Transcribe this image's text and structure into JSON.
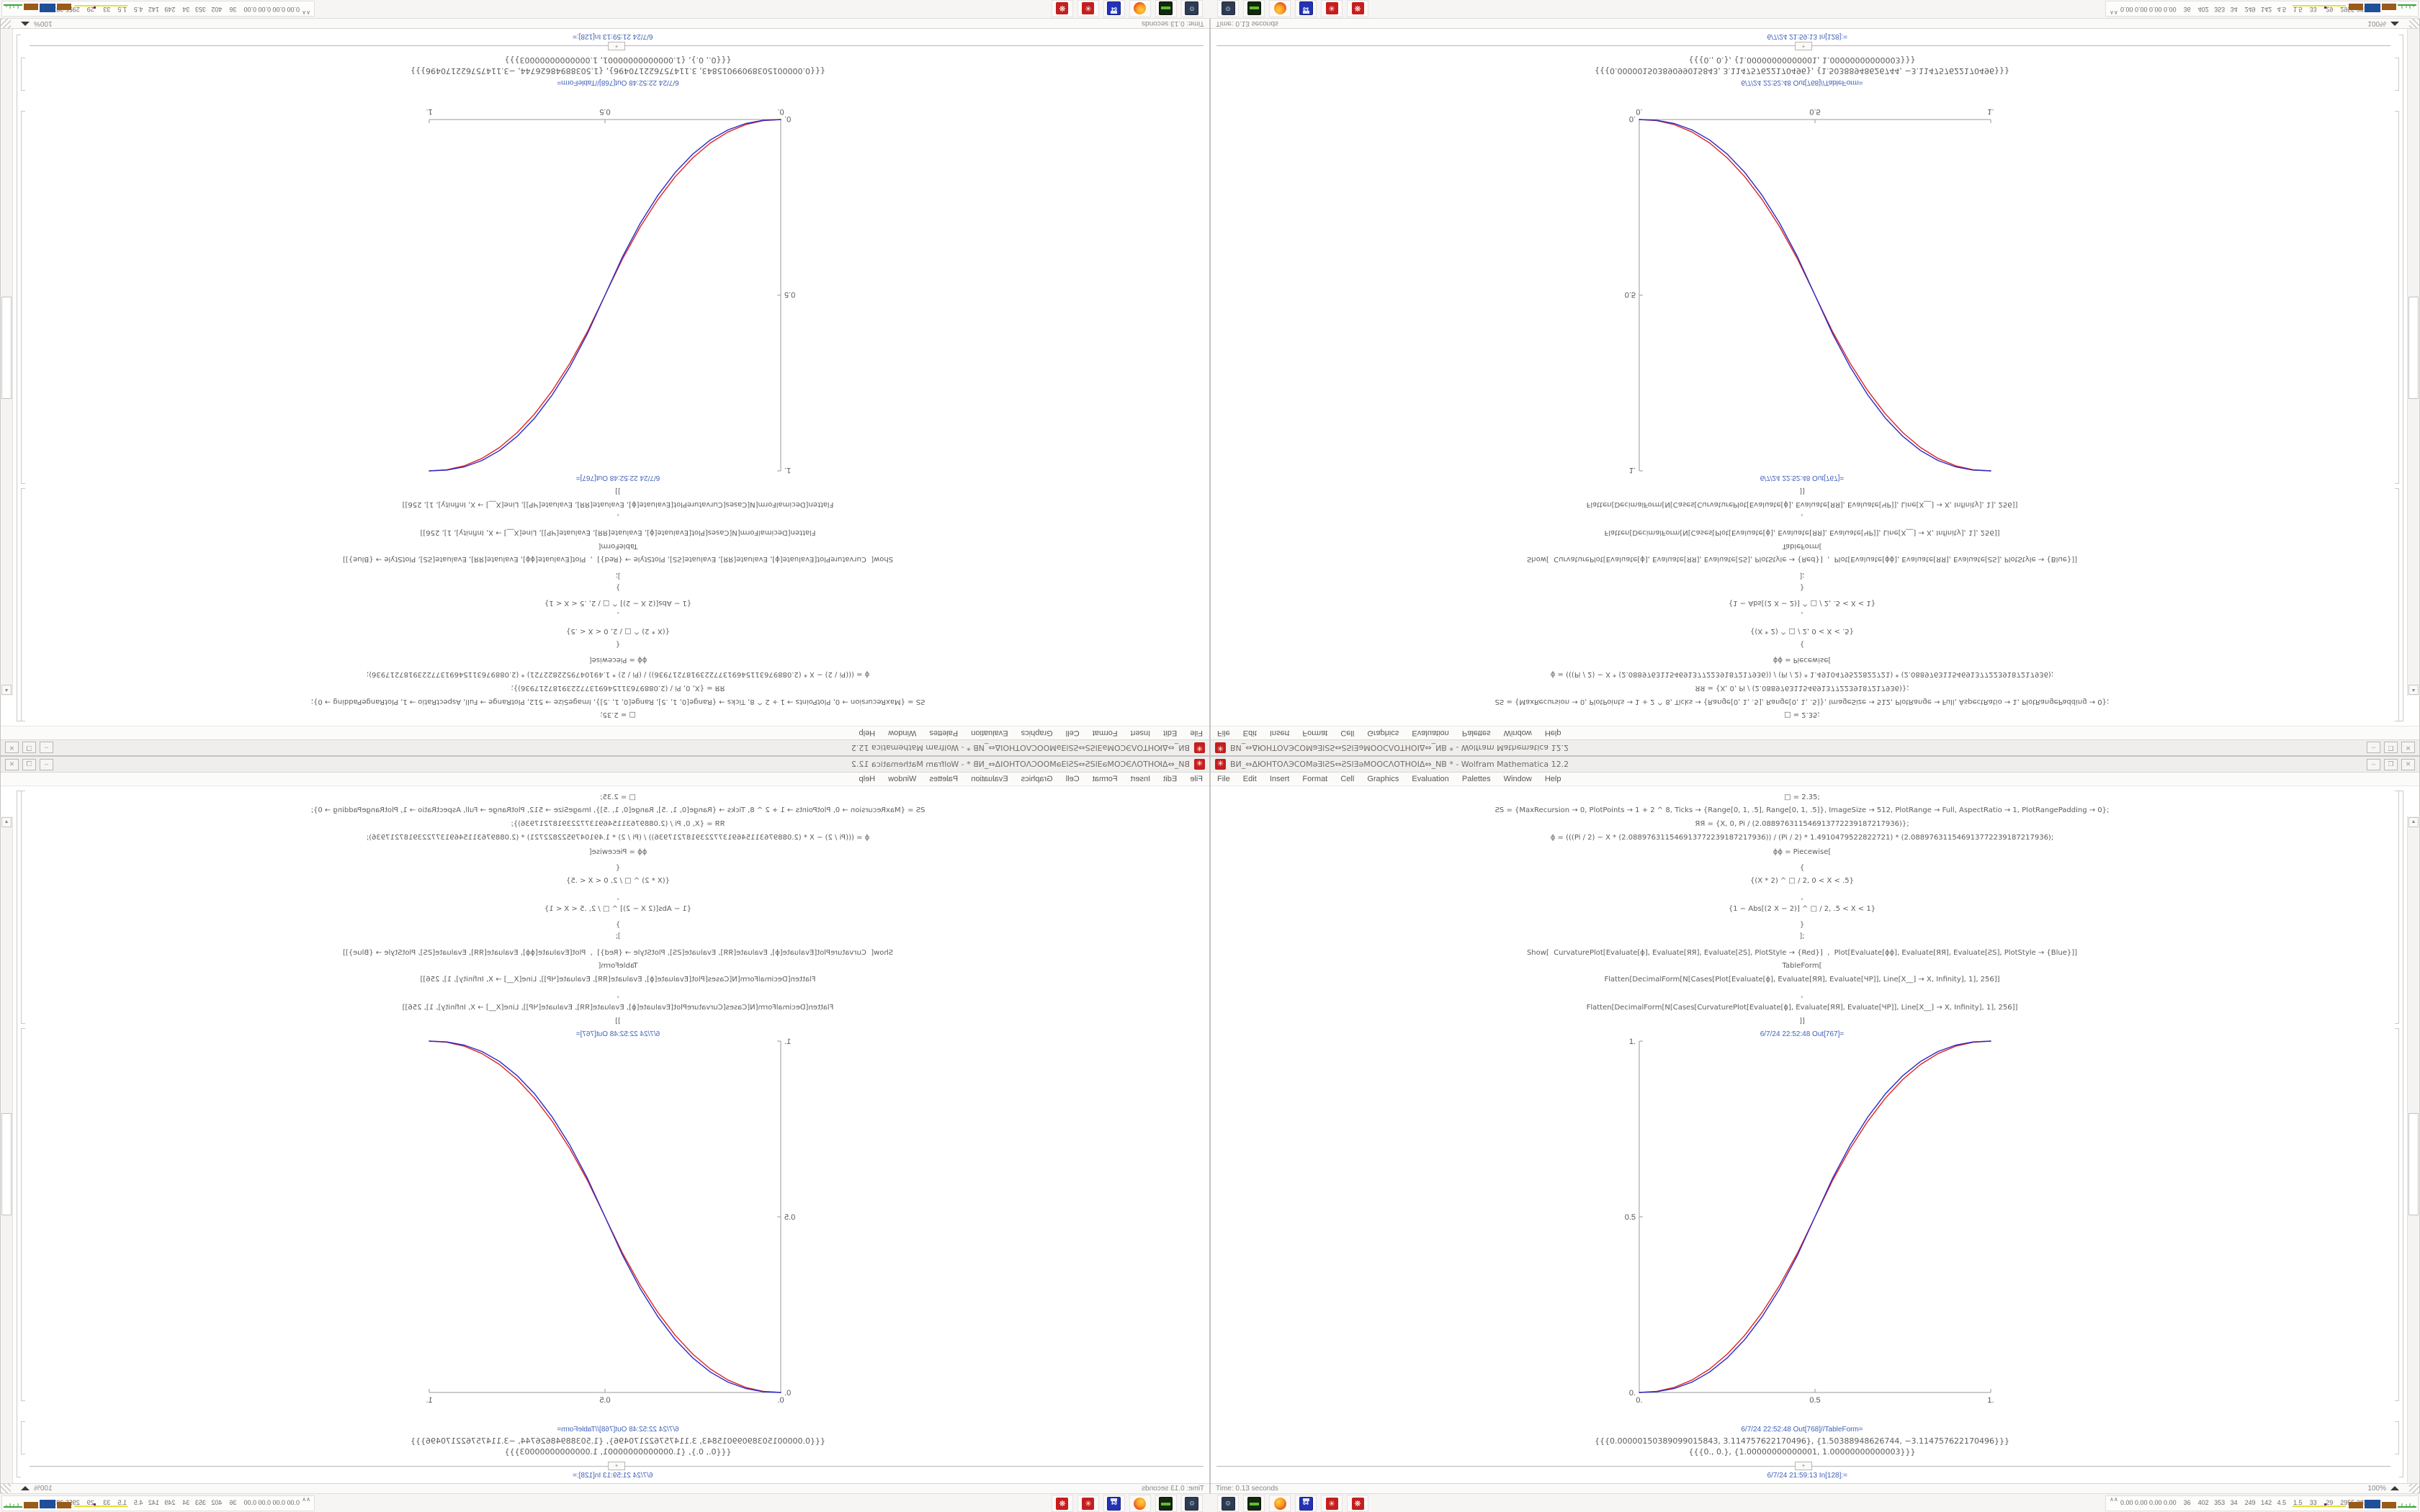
{
  "screen": {
    "titlebar": {
      "app_icon": "mathematica-spike-icon",
      "title": "ВИ_⇔ΔЮНТОΛЭСОМǝƎlƧS⇔ƧSlƎǝМООСΛОТНОІΔ⇔_NB * - Wolfram Mathematica 12.2",
      "minimize": "–",
      "maximize": "❒",
      "close": "✕"
    },
    "menu": [
      "File",
      "Edit",
      "Insert",
      "Format",
      "Cell",
      "Graphics",
      "Evaluation",
      "Palettes",
      "Window",
      "Help"
    ],
    "notebook": {
      "lines": [
        "□ = 2.35;",
        "ƧЅ = {MaxRecursion → 0, PlotPoints → 1 + 2 ^ 8, Ticks → {Range[0, 1, .5], Range[0, 1, .5]}, ImageSize → 512, PlotRange → Full, AspectRatio → 1, PlotRangePadding → 0};",
        "ЯЯ = {X, 0, Pi / (2.088976311546913772239187217936)};",
        "ɸ = (((Pi / 2) − X * (2.088976311546913772239187217936)) / (Pi / 2) * 1.4910479522822721) * (2.088976311546913772239187217936);",
        "ɸɸ = Piecewise[",
        "{",
        "{(X * 2) ^ □ / 2, 0 < X < .5}",
        ",",
        "{1 − Abs[(2 X − 2)] ^ □ / 2, .5 < X < 1}",
        "}",
        "];",
        "Show[  CurvaturePlot[Evaluate[ɸ], Evaluate[ЯЯ], Evaluate[ƧЅ], PlotStyle → {Red}]  ,  Plot[Evaluate[ɸɸ], Evaluate[ЯЯ], Evaluate[ƧЅ], PlotStyle → {Blue}]]",
        "TableForm[",
        "Flatten[DecimalForm[N[Cases[Plot[Evaluate[ɸ], Evaluate[ЯЯ], Evaluate[ЧР]], Line[X__] → X, Infinity], 1], 256]]",
        ",",
        "Flatten[DecimalForm[N[Cases[CurvaturePlot[Evaluate[ɸ], Evaluate[ЯЯ], Evaluate[ЧР]], Line[X__] → X, Infinity], 1], 256]]",
        "]]"
      ],
      "out1_label": "6/7/24 22:52:48 Out[767]=",
      "out2_label": "6/7/24 22:52:48 Out[768]//TableForm=",
      "table_rows": [
        "{{{0.00000150389099015843, 3.114757622170496}, {1.50388948626744, −3.114757622170496}}}",
        "{{{0., 0.}, {1.00000000000001, 1.00000000000003}}}"
      ],
      "insert_plus": "+",
      "next_in_label": "6/7/24 21:59:13 In[128]:="
    },
    "status": {
      "time": "Time: 0.13 seconds",
      "zoom": "100%"
    },
    "taskbar": {
      "icons": [
        "system-monitor-icon",
        "package-manager-icon",
        "firefox-icon",
        "floppy-64-icon",
        "mathematica-red-icon",
        "mathematica-kernel-red-icon"
      ],
      "floppy_label": "64",
      "tray_expander": "∧∧",
      "tray_text": "0.00 0.00 0.00 0.00    36    402   353   34    249   142   4.5    1.5    33     29    2955 3811"
    },
    "colors": {
      "app_red": "#c41e1e",
      "cell_label_blue": "#4060b8",
      "curve_red": "#dd2222",
      "curve_blue": "#2a2ac8",
      "tray_yellow": "#e8e13a",
      "tray_brown": "#9a5a18",
      "tray_blue": "#1f4f99",
      "tray_green": "#3aa53a",
      "tray_purple": "#7a1fa0"
    }
  },
  "chart_data": {
    "type": "line",
    "title": "6/7/24 22:52:48 Out[767]=",
    "xlabel": "",
    "ylabel": "",
    "xlim": [
      0,
      1
    ],
    "ylim": [
      0,
      1
    ],
    "grid": false,
    "legend_position": "none",
    "xticks": [
      {
        "v": 0,
        "label": "0."
      },
      {
        "v": 0.5,
        "label": "0.5"
      },
      {
        "v": 1,
        "label": "1."
      }
    ],
    "yticks": [
      {
        "v": 0,
        "label": "0."
      },
      {
        "v": 0.5,
        "label": "0.5"
      },
      {
        "v": 1,
        "label": "1."
      }
    ],
    "x": [
      0,
      0.05,
      0.1,
      0.15,
      0.2,
      0.25,
      0.3,
      0.35,
      0.4,
      0.45,
      0.5,
      0.55,
      0.6,
      0.65,
      0.7,
      0.75,
      0.8,
      0.85,
      0.9,
      0.95,
      1
    ],
    "series": [
      {
        "name": "CurvaturePlot ɸ (Red)",
        "color": "#dd2222",
        "values": [
          0,
          0.0032,
          0.0145,
          0.0354,
          0.0666,
          0.1088,
          0.1625,
          0.2282,
          0.3061,
          0.3966,
          0.5,
          0.6034,
          0.6939,
          0.7718,
          0.8375,
          0.8912,
          0.9334,
          0.9646,
          0.9855,
          0.9968,
          1
        ]
      },
      {
        "name": "Plot ɸɸ (Blue)",
        "color": "#2a2ac8",
        "values": [
          0,
          0.0022,
          0.0114,
          0.0295,
          0.058,
          0.0981,
          0.1505,
          0.2163,
          0.296,
          0.3903,
          0.5,
          0.6097,
          0.704,
          0.7837,
          0.8495,
          0.9019,
          0.942,
          0.9705,
          0.9886,
          0.9978,
          1
        ]
      }
    ]
  }
}
